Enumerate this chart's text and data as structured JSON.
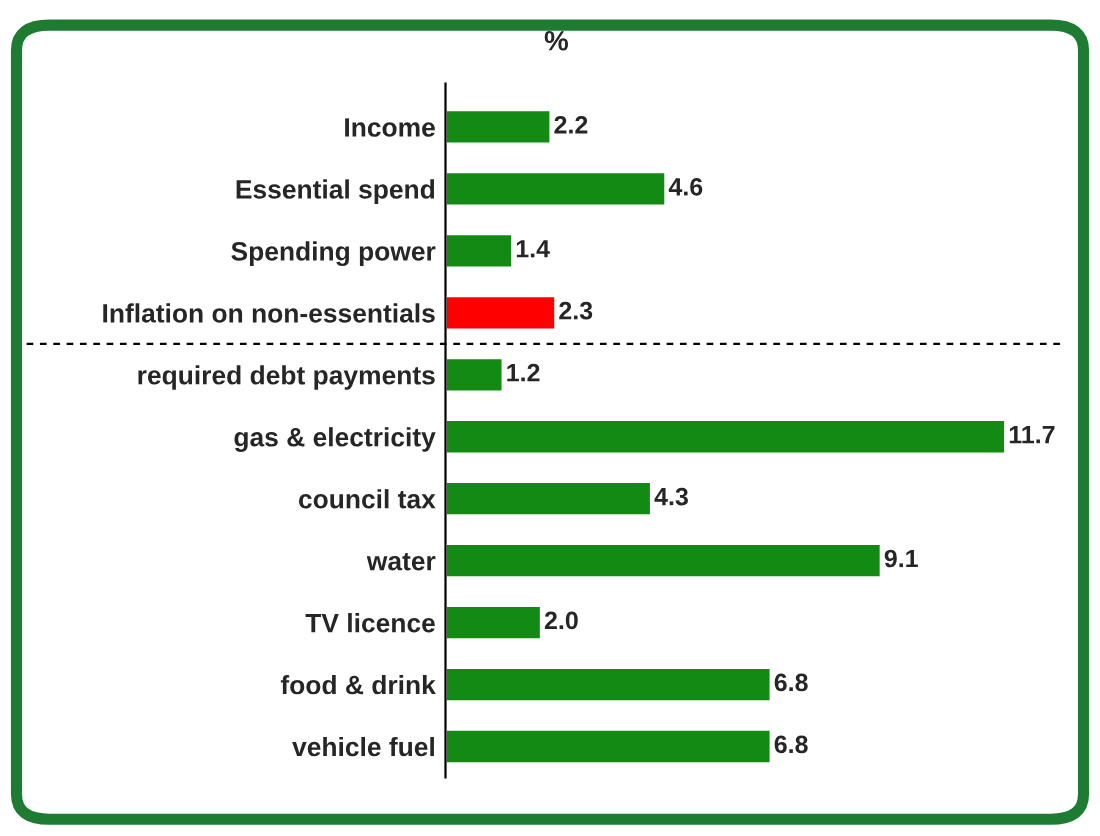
{
  "chart_data": {
    "type": "bar",
    "orientation": "horizontal",
    "title": "%",
    "categories": [
      "Income",
      "Essential spend",
      "Spending power",
      "Inflation on non-essentials",
      "required debt payments",
      "gas & electricity",
      "council tax",
      "water",
      "TV licence",
      "food & drink",
      "vehicle fuel"
    ],
    "values": [
      2.2,
      4.6,
      1.4,
      2.3,
      1.2,
      11.7,
      4.3,
      9.1,
      2.0,
      6.8,
      6.8
    ],
    "colors": [
      "#138a13",
      "#138a13",
      "#138a13",
      "#ff0000",
      "#138a13",
      "#138a13",
      "#138a13",
      "#138a13",
      "#138a13",
      "#138a13",
      "#138a13"
    ],
    "value_labels": [
      "2.2",
      "4.6",
      "1.4",
      "2.3",
      "1.2",
      "11.7",
      "4.3",
      "9.1",
      "2.0",
      "6.8",
      "6.8"
    ],
    "tick_labels": "y",
    "grid": false,
    "legend": false
  }
}
